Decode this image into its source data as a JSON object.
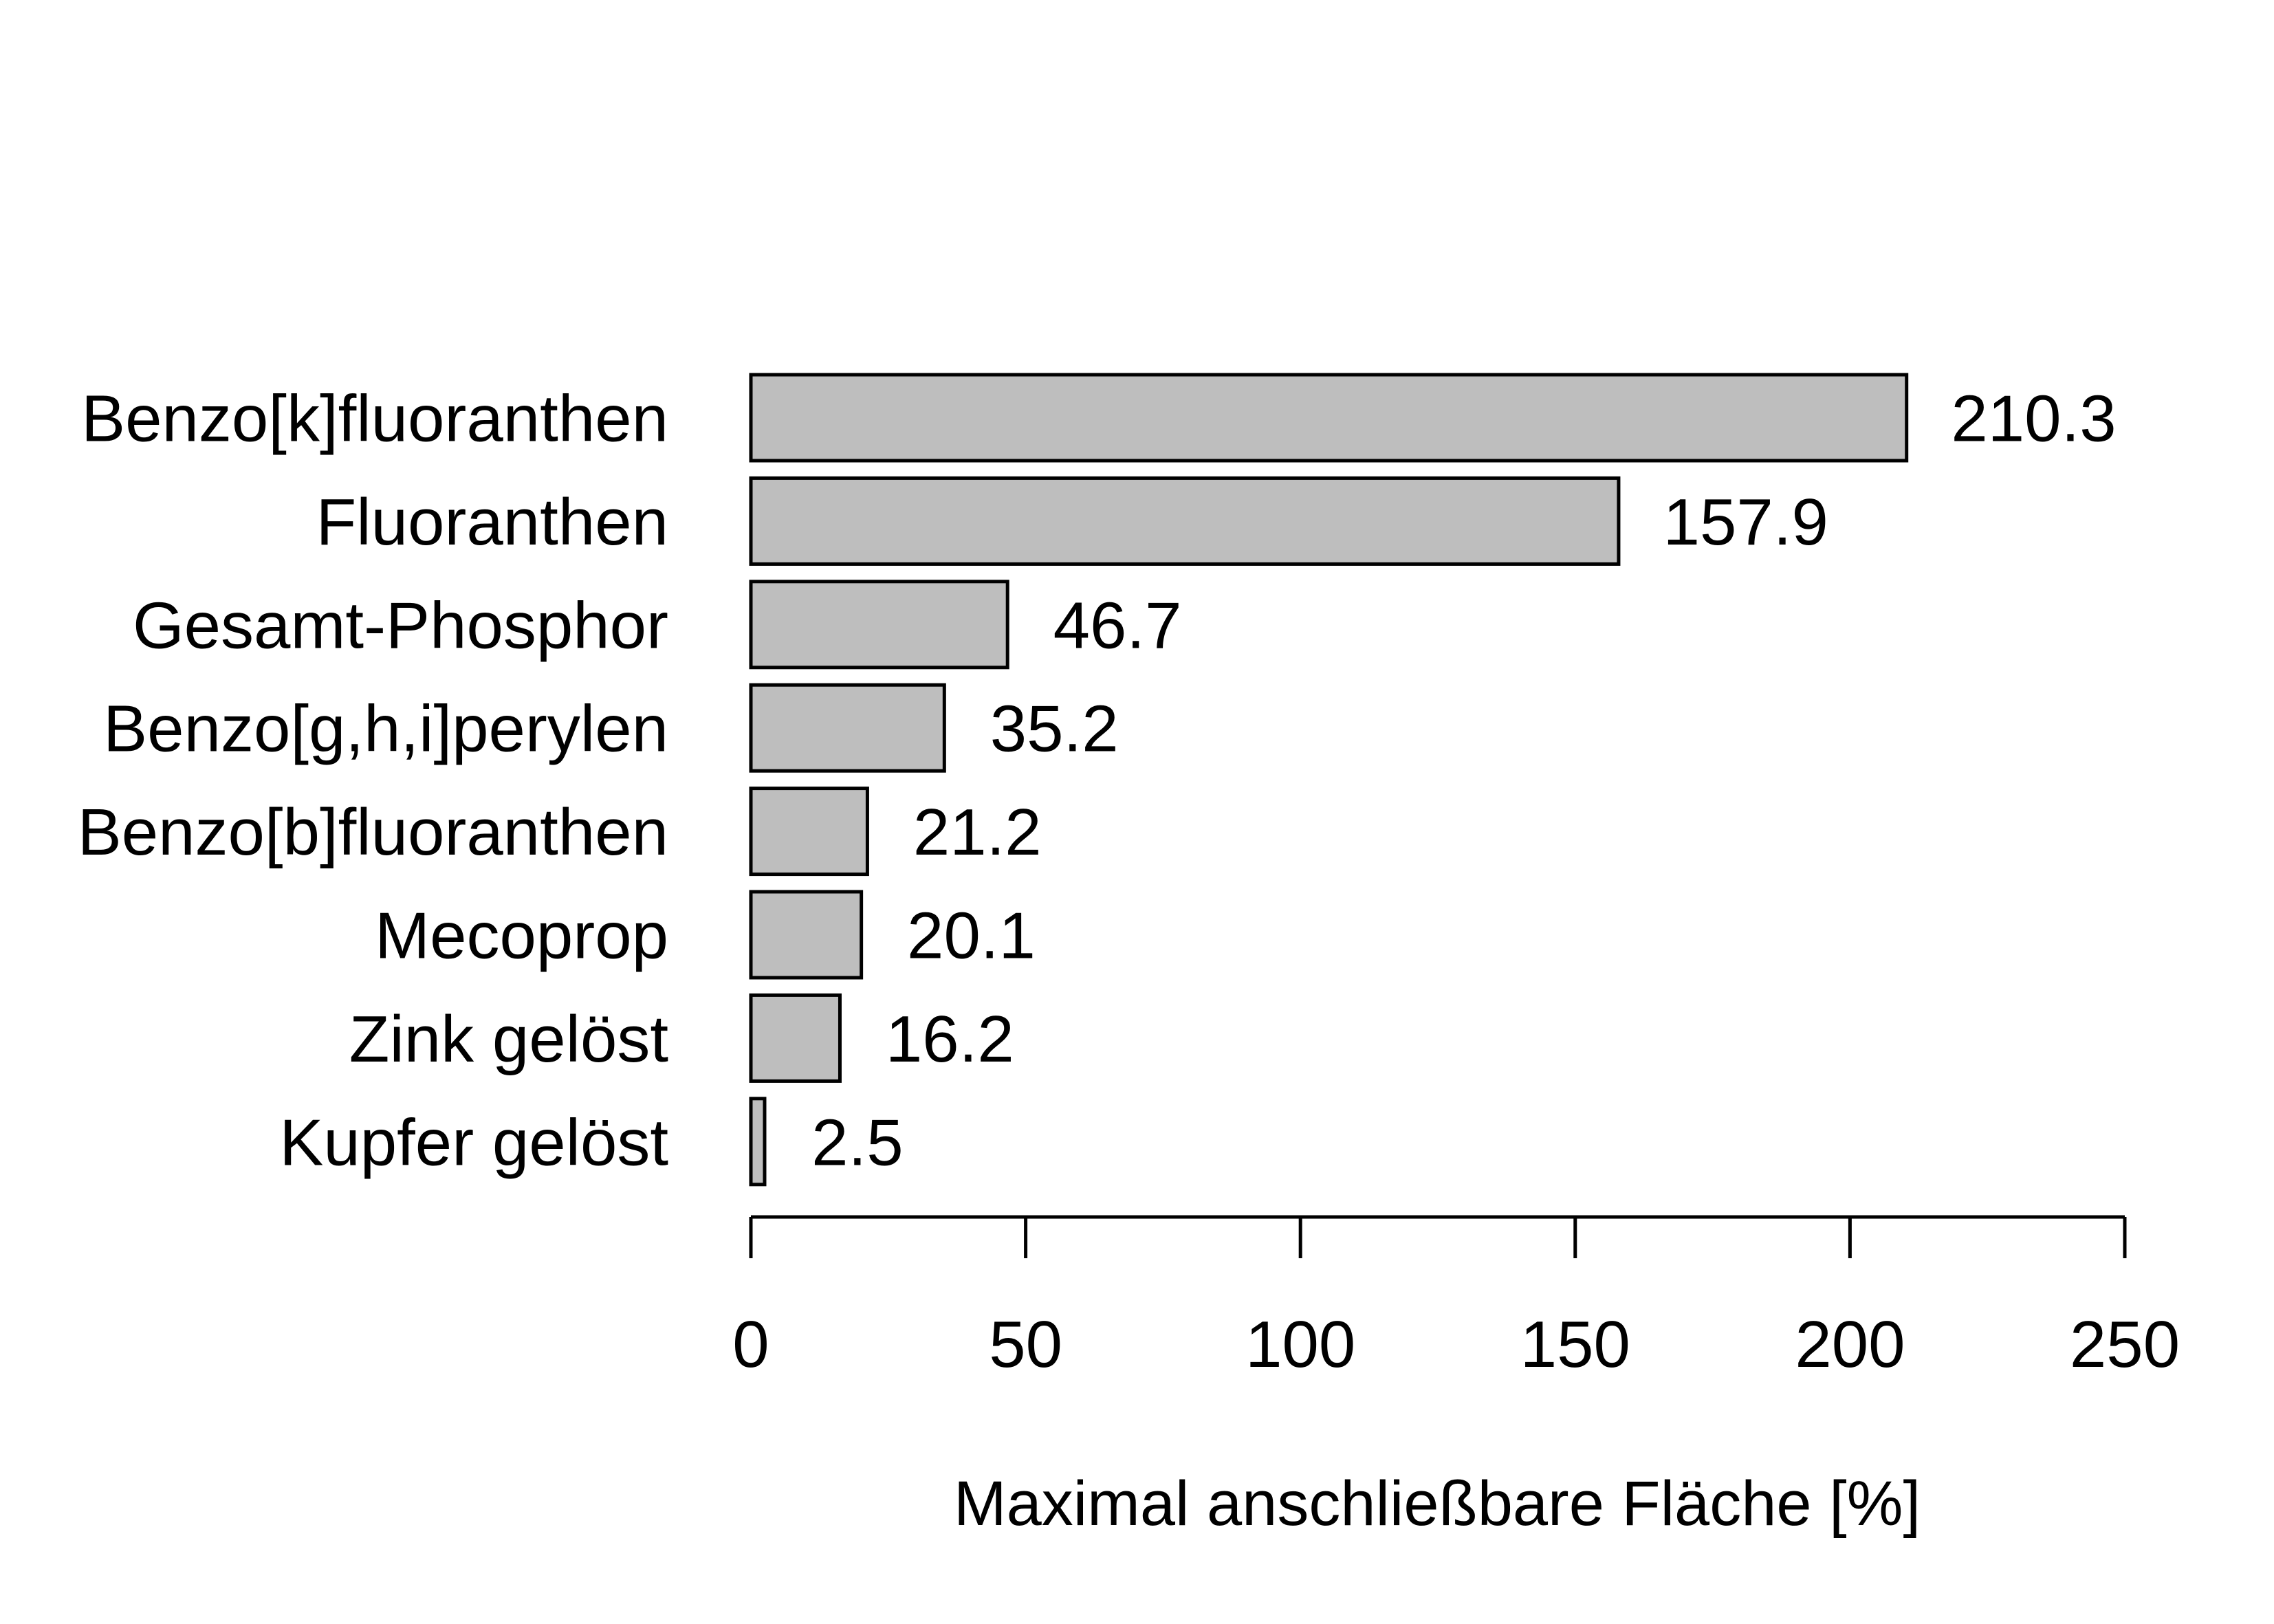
{
  "chart_data": {
    "type": "bar",
    "orientation": "horizontal",
    "categories": [
      "Benzo[k]fluoranthen",
      "Fluoranthen",
      "Gesamt-Phosphor",
      "Benzo[g,h,i]perylen",
      "Benzo[b]fluoranthen",
      "Mecoprop",
      "Zink gelöst",
      "Kupfer gelöst"
    ],
    "values": [
      210.3,
      157.9,
      46.7,
      35.2,
      21.2,
      20.1,
      16.2,
      2.5
    ],
    "value_labels": [
      "210.3",
      "157.9",
      "46.7",
      "35.2",
      "21.2",
      "20.1",
      "16.2",
      "2.5"
    ],
    "xlabel": "Maximal anschließbare Fläche [%]",
    "ylabel": "",
    "title": "",
    "xlim": [
      0,
      250
    ],
    "xticks": [
      0,
      50,
      100,
      150,
      200,
      250
    ],
    "grid": false,
    "legend": "none",
    "colors": {
      "bar_fill": "#bebebe",
      "bar_stroke": "#000000",
      "text": "#000000",
      "axis": "#000000"
    }
  }
}
